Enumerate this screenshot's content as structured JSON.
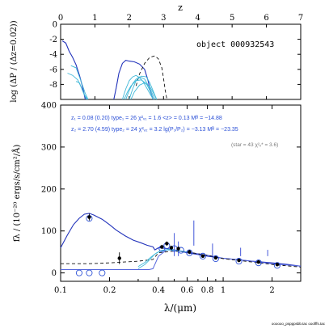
{
  "colors": {
    "model_best": "#2233bb",
    "model_alt": "#5566dd",
    "photometry": "#2a4fd6",
    "dashed": "#111111",
    "cyan_curves": "#3fb8d8",
    "stats_text": "#2a4fd6",
    "star_text": "#7a7a7a",
    "axis": "#000000"
  },
  "chart_data": [
    {
      "type": "line",
      "panel": "top",
      "xlabel": "z",
      "ylabel": "log (ΔP / (Δz=0.02))",
      "xlim": [
        0,
        7
      ],
      "ylim": [
        -10,
        0
      ],
      "x_ticks": [
        0,
        1,
        2,
        3,
        4,
        5,
        6,
        7
      ],
      "y_ticks": [
        0,
        -2,
        -4,
        -6,
        -8
      ],
      "annotation": "object 000932543",
      "series": [
        {
          "style": "navy",
          "x": [
            0.05,
            0.15,
            0.25,
            0.35,
            0.45,
            0.55,
            0.62,
            0.68,
            0.72
          ],
          "y": [
            -2.2,
            -2.5,
            -3.6,
            -4.4,
            -5.4,
            -6.8,
            -8.0,
            -9.2,
            -10
          ]
        },
        {
          "style": "navy",
          "x": [
            1.55,
            1.62,
            1.7,
            1.8,
            1.9,
            2.0,
            2.15,
            2.3,
            2.45,
            2.55,
            2.62,
            2.7
          ],
          "y": [
            -10,
            -8.5,
            -6.5,
            -5.2,
            -4.8,
            -4.9,
            -5.0,
            -5.3,
            -6.0,
            -7.5,
            -9.0,
            -10
          ]
        },
        {
          "style": "dashed",
          "x": [
            2.2,
            2.3,
            2.45,
            2.6,
            2.75,
            2.85,
            2.95,
            3.0,
            3.05,
            3.1
          ],
          "y": [
            -8.2,
            -6.6,
            -5.2,
            -4.4,
            -4.2,
            -4.6,
            -5.8,
            -7.2,
            -8.8,
            -10
          ]
        },
        {
          "style": "cyan",
          "x": [
            0.3,
            0.45,
            0.55,
            0.65,
            0.72,
            0.8
          ],
          "y": [
            -5.5,
            -5.8,
            -7.0,
            -8.3,
            -9.2,
            -10
          ]
        },
        {
          "style": "cyan",
          "x": [
            0.2,
            0.35,
            0.5,
            0.6,
            0.68,
            0.76
          ],
          "y": [
            -6.5,
            -6.8,
            -7.4,
            -8.4,
            -9.3,
            -10
          ]
        },
        {
          "style": "cyan",
          "x": [
            0.45,
            0.55,
            0.62,
            0.7,
            0.78
          ],
          "y": [
            -7.6,
            -7.8,
            -8.6,
            -9.4,
            -10
          ]
        },
        {
          "style": "cyan",
          "x": [
            1.8,
            1.9,
            2.0,
            2.1,
            2.2,
            2.3,
            2.4,
            2.5,
            2.6,
            2.7
          ],
          "y": [
            -10,
            -8.6,
            -7.5,
            -7.0,
            -6.8,
            -7.1,
            -7.6,
            -8.4,
            -9.2,
            -10
          ]
        },
        {
          "style": "cyan",
          "x": [
            1.9,
            2.0,
            2.1,
            2.2,
            2.3,
            2.45,
            2.55,
            2.65,
            2.75
          ],
          "y": [
            -10,
            -8.8,
            -7.9,
            -7.3,
            -7.0,
            -7.3,
            -8.1,
            -9.0,
            -10
          ]
        },
        {
          "style": "cyan",
          "x": [
            1.85,
            1.95,
            2.05,
            2.2,
            2.35,
            2.5,
            2.6,
            2.7
          ],
          "y": [
            -10,
            -9.0,
            -8.2,
            -7.5,
            -7.4,
            -7.9,
            -8.8,
            -10
          ]
        },
        {
          "style": "cyan",
          "x": [
            2.0,
            2.1,
            2.2,
            2.35,
            2.5,
            2.6,
            2.7,
            2.8
          ],
          "y": [
            -10,
            -8.6,
            -7.5,
            -6.9,
            -7.0,
            -7.8,
            -8.9,
            -10
          ]
        },
        {
          "style": "cyan",
          "x": [
            2.05,
            2.15,
            2.3,
            2.45,
            2.6,
            2.7,
            2.8
          ],
          "y": [
            -10,
            -9.0,
            -8.1,
            -7.8,
            -8.3,
            -9.1,
            -10
          ]
        }
      ]
    },
    {
      "type": "line",
      "panel": "bottom",
      "xlabel": "λ/(μm)",
      "ylabel": "fλ / (10⁻²⁰ ergs/s/cm²/Å)",
      "x_scale": "log",
      "xlim": [
        0.1,
        3.0
      ],
      "ylim": [
        -20,
        400
      ],
      "x_ticks": [
        0.1,
        0.2,
        0.4,
        0.6,
        0.8,
        1,
        2
      ],
      "x_tick_labels": [
        "0.1",
        "0.2",
        "0.4",
        "0.6",
        "0.8",
        "1",
        "2"
      ],
      "y_ticks": [
        0,
        100,
        200,
        300,
        400
      ],
      "stats_lines": [
        "z₁ = 0.08 (0.20)   type₁ = 26   χ²ᵥ₁ = 1.6   <z> = 0.13   Mᴮ = −14.88",
        "z₂ = 2.70 (4.59)   type₂ = 24   χ²ᵥ₂ = 3.2   lg(P₁/P₂) = −3.13   Mᴮ = −23.35",
        "(star = 43   χ²ᵥ* = 3.6)"
      ],
      "series": [
        {
          "style": "navy",
          "x": [
            0.1,
            0.11,
            0.12,
            0.13,
            0.14,
            0.15,
            0.16,
            0.18,
            0.2,
            0.22,
            0.25,
            0.28,
            0.31,
            0.34,
            0.37,
            0.38,
            0.4,
            0.45,
            0.5,
            0.6,
            0.7,
            0.8,
            1.0,
            1.2,
            1.5,
            2.0,
            2.5,
            3.0
          ],
          "y": [
            60,
            90,
            115,
            130,
            140,
            142,
            138,
            128,
            115,
            102,
            88,
            78,
            72,
            66,
            62,
            55,
            60,
            58,
            55,
            48,
            44,
            40,
            35,
            32,
            28,
            24,
            20,
            16
          ]
        },
        {
          "style": "blue_thin",
          "x": [
            0.1,
            0.15,
            0.2,
            0.25,
            0.3,
            0.35,
            0.37,
            0.4,
            0.45,
            0.5,
            0.6,
            0.8,
            1.0,
            1.5,
            2.0,
            3.0
          ],
          "y": [
            8,
            8,
            8,
            8,
            8,
            8,
            10,
            40,
            55,
            55,
            50,
            42,
            35,
            28,
            22,
            16
          ]
        },
        {
          "style": "dashed",
          "x": [
            0.1,
            0.15,
            0.2,
            0.3,
            0.37,
            0.4,
            0.5,
            0.6,
            0.8,
            1.0,
            1.5,
            2.0,
            3.0
          ],
          "y": [
            22,
            22,
            24,
            28,
            32,
            48,
            52,
            50,
            42,
            34,
            26,
            20,
            14
          ]
        },
        {
          "style": "cyan",
          "x": [
            0.3,
            0.33,
            0.36,
            0.38,
            0.4,
            0.45,
            0.5,
            0.6
          ],
          "y": [
            10,
            20,
            35,
            45,
            50,
            55,
            54,
            50
          ]
        },
        {
          "style": "cyan",
          "x": [
            0.3,
            0.33,
            0.36,
            0.39,
            0.42,
            0.46,
            0.5
          ],
          "y": [
            15,
            25,
            38,
            48,
            54,
            56,
            55
          ]
        }
      ],
      "emission_lines": [
        {
          "x": 0.5,
          "y": 95
        },
        {
          "x": 0.53,
          "y": 75
        },
        {
          "x": 0.66,
          "y": 125
        },
        {
          "x": 0.86,
          "y": 70
        },
        {
          "x": 1.28,
          "y": 60
        },
        {
          "x": 1.88,
          "y": 55
        }
      ],
      "photometry_points": [
        {
          "x": 0.15,
          "y": 133,
          "err": 8
        },
        {
          "x": 0.23,
          "y": 35,
          "err": 14
        },
        {
          "x": 0.42,
          "y": 62,
          "err": 5
        },
        {
          "x": 0.45,
          "y": 70,
          "err": 5
        },
        {
          "x": 0.48,
          "y": 60,
          "err": 5
        },
        {
          "x": 0.53,
          "y": 58,
          "err": 5
        },
        {
          "x": 0.62,
          "y": 50,
          "err": 5
        },
        {
          "x": 0.75,
          "y": 40,
          "err": 4
        },
        {
          "x": 0.9,
          "y": 36,
          "err": 4
        },
        {
          "x": 1.25,
          "y": 30,
          "err": 4
        },
        {
          "x": 1.65,
          "y": 26,
          "err": 4
        },
        {
          "x": 2.15,
          "y": 20,
          "err": 4
        }
      ],
      "model_photometry": [
        {
          "x": 0.13,
          "y": 0
        },
        {
          "x": 0.15,
          "y": 0
        },
        {
          "x": 0.18,
          "y": 0
        },
        {
          "x": 0.15,
          "y": 130
        },
        {
          "x": 0.42,
          "y": 58
        },
        {
          "x": 0.45,
          "y": 65
        },
        {
          "x": 0.5,
          "y": 58
        },
        {
          "x": 0.55,
          "y": 54
        },
        {
          "x": 0.62,
          "y": 48
        },
        {
          "x": 0.75,
          "y": 40
        },
        {
          "x": 0.9,
          "y": 34
        },
        {
          "x": 1.25,
          "y": 28
        },
        {
          "x": 1.65,
          "y": 24
        },
        {
          "x": 2.15,
          "y": 18
        }
      ]
    }
  ],
  "footer": "oooooo_pspppsbb.tac ooofffs.tac"
}
